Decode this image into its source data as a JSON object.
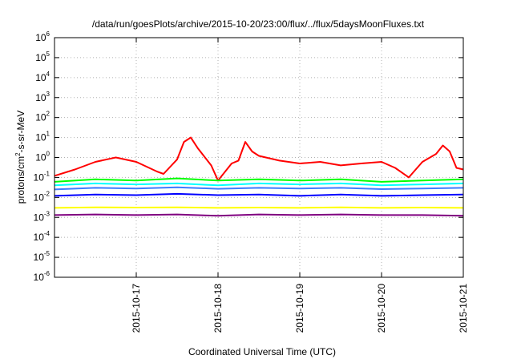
{
  "chart_data": {
    "type": "line",
    "title": "/data/run/goesPlots/archive/2015-10-20/23:00/flux/../flux/5daysMoonFluxes.txt",
    "xlabel": "Coordinated Universal Time (UTC)",
    "ylabel": {
      "base": "protons/cm",
      "sup": "2",
      "rest": "-s-sr-MeV"
    },
    "x_range": [
      "2015-10-16T00:00",
      "2015-10-21T00:00"
    ],
    "x_ticks": [
      "2015-10-17",
      "2015-10-18",
      "2015-10-19",
      "2015-10-20",
      "2015-10-21"
    ],
    "y_scale": "log",
    "ylim": [
      1e-06,
      1000000.0
    ],
    "y_ticks": [
      {
        "value": 1e-06,
        "base": "10",
        "exp": "-6"
      },
      {
        "value": 1e-05,
        "base": "10",
        "exp": "-5"
      },
      {
        "value": 0.0001,
        "base": "10",
        "exp": "-4"
      },
      {
        "value": 0.001,
        "base": "10",
        "exp": "-3"
      },
      {
        "value": 0.01,
        "base": "10",
        "exp": "-2"
      },
      {
        "value": 0.1,
        "base": "10",
        "exp": "-1"
      },
      {
        "value": 1,
        "base": "10",
        "exp": "0"
      },
      {
        "value": 10,
        "base": "10",
        "exp": "1"
      },
      {
        "value": 100,
        "base": "10",
        "exp": "2"
      },
      {
        "value": 1000,
        "base": "10",
        "exp": "3"
      },
      {
        "value": 10000,
        "base": "10",
        "exp": "4"
      },
      {
        "value": 100000,
        "base": "10",
        "exp": "5"
      },
      {
        "value": 1000000,
        "base": "10",
        "exp": "6"
      }
    ],
    "grid": true,
    "series": [
      {
        "color": "#ff0000",
        "x": [
          "2015-10-16T00:00",
          "2015-10-16T06:00",
          "2015-10-16T12:00",
          "2015-10-16T18:00",
          "2015-10-17T00:00",
          "2015-10-17T06:00",
          "2015-10-17T08:00",
          "2015-10-17T12:00",
          "2015-10-17T14:00",
          "2015-10-17T16:00",
          "2015-10-17T18:00",
          "2015-10-17T22:00",
          "2015-10-18T00:00",
          "2015-10-18T04:00",
          "2015-10-18T06:00",
          "2015-10-18T08:00",
          "2015-10-18T10:00",
          "2015-10-18T12:00",
          "2015-10-18T18:00",
          "2015-10-19T00:00",
          "2015-10-19T06:00",
          "2015-10-19T12:00",
          "2015-10-19T18:00",
          "2015-10-20T00:00",
          "2015-10-20T04:00",
          "2015-10-20T08:00",
          "2015-10-20T12:00",
          "2015-10-20T16:00",
          "2015-10-20T18:00",
          "2015-10-20T20:00",
          "2015-10-20T22:00",
          "2015-10-21T00:00"
        ],
        "y": [
          0.12,
          0.25,
          0.6,
          1.0,
          0.6,
          0.2,
          0.15,
          0.8,
          6,
          10,
          3,
          0.4,
          0.07,
          0.5,
          0.7,
          6,
          2,
          1.2,
          0.7,
          0.5,
          0.6,
          0.4,
          0.5,
          0.6,
          0.3,
          0.1,
          0.6,
          1.5,
          4,
          2,
          0.3,
          0.25
        ]
      },
      {
        "color": "#00ff00",
        "x": [
          "2015-10-16T00:00",
          "2015-10-16T12:00",
          "2015-10-17T00:00",
          "2015-10-17T12:00",
          "2015-10-18T00:00",
          "2015-10-18T12:00",
          "2015-10-19T00:00",
          "2015-10-19T12:00",
          "2015-10-20T00:00",
          "2015-10-20T12:00",
          "2015-10-21T00:00"
        ],
        "y": [
          0.06,
          0.08,
          0.07,
          0.09,
          0.07,
          0.08,
          0.07,
          0.08,
          0.06,
          0.07,
          0.08
        ]
      },
      {
        "color": "#00ffff",
        "x": [
          "2015-10-16T00:00",
          "2015-10-16T12:00",
          "2015-10-17T00:00",
          "2015-10-17T12:00",
          "2015-10-18T00:00",
          "2015-10-18T12:00",
          "2015-10-19T00:00",
          "2015-10-19T12:00",
          "2015-10-20T00:00",
          "2015-10-20T12:00",
          "2015-10-21T00:00"
        ],
        "y": [
          0.04,
          0.05,
          0.045,
          0.05,
          0.04,
          0.05,
          0.045,
          0.05,
          0.04,
          0.045,
          0.05
        ]
      },
      {
        "color": "#3c7cff",
        "x": [
          "2015-10-16T00:00",
          "2015-10-16T12:00",
          "2015-10-17T00:00",
          "2015-10-17T12:00",
          "2015-10-18T00:00",
          "2015-10-18T12:00",
          "2015-10-19T00:00",
          "2015-10-19T12:00",
          "2015-10-20T00:00",
          "2015-10-20T12:00",
          "2015-10-21T00:00"
        ],
        "y": [
          0.025,
          0.03,
          0.028,
          0.032,
          0.027,
          0.03,
          0.028,
          0.03,
          0.026,
          0.028,
          0.03
        ]
      },
      {
        "color": "#0000ff",
        "x": [
          "2015-10-16T00:00",
          "2015-10-16T12:00",
          "2015-10-17T00:00",
          "2015-10-17T12:00",
          "2015-10-18T00:00",
          "2015-10-18T12:00",
          "2015-10-19T00:00",
          "2015-10-19T12:00",
          "2015-10-20T00:00",
          "2015-10-20T12:00",
          "2015-10-21T00:00"
        ],
        "y": [
          0.012,
          0.014,
          0.013,
          0.015,
          0.013,
          0.014,
          0.012,
          0.014,
          0.012,
          0.013,
          0.014
        ]
      },
      {
        "color": "#ffff00",
        "x": [
          "2015-10-16T00:00",
          "2015-10-16T12:00",
          "2015-10-17T00:00",
          "2015-10-17T12:00",
          "2015-10-18T00:00",
          "2015-10-18T12:00",
          "2015-10-19T00:00",
          "2015-10-19T12:00",
          "2015-10-20T00:00",
          "2015-10-20T12:00",
          "2015-10-21T00:00"
        ],
        "y": [
          0.003,
          0.0032,
          0.0031,
          0.0032,
          0.003,
          0.0031,
          0.003,
          0.0032,
          0.003,
          0.0031,
          0.003
        ]
      },
      {
        "color": "#800080",
        "x": [
          "2015-10-16T00:00",
          "2015-10-16T12:00",
          "2015-10-17T00:00",
          "2015-10-17T12:00",
          "2015-10-18T00:00",
          "2015-10-18T12:00",
          "2015-10-19T00:00",
          "2015-10-19T12:00",
          "2015-10-20T00:00",
          "2015-10-20T12:00",
          "2015-10-21T00:00"
        ],
        "y": [
          0.0013,
          0.0014,
          0.0013,
          0.0014,
          0.0012,
          0.0014,
          0.0013,
          0.0014,
          0.0013,
          0.0013,
          0.0012
        ]
      }
    ]
  }
}
